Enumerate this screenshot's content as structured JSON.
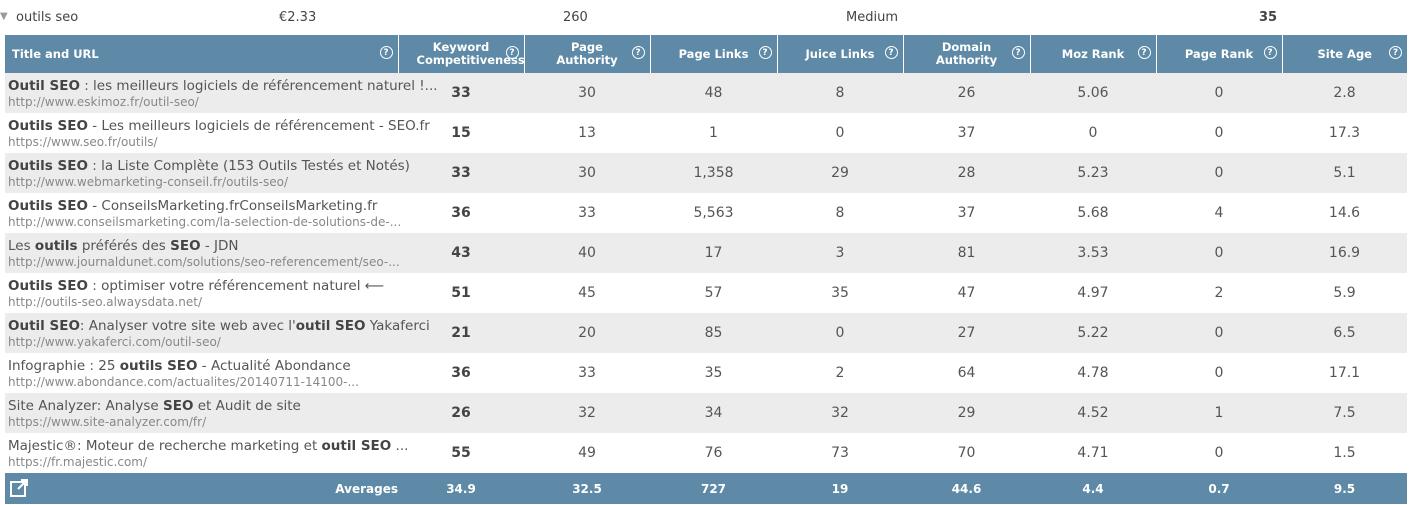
{
  "summary": {
    "keyword": "outils seo",
    "cpc": "€2.33",
    "volume": "260",
    "competition": "Medium",
    "score": "35"
  },
  "columns": [
    "Title and URL",
    "Keyword Competitiveness",
    "Page Authority",
    "Page Links",
    "Juice Links",
    "Domain Authority",
    "Moz Rank",
    "Page Rank",
    "Site Age"
  ],
  "rows": [
    {
      "title_html": "<b>Outil SEO</b> : les meilleurs logiciels de référencement naturel !...",
      "url": "http://www.eskimoz.fr/outil-seo/",
      "kc": "33",
      "pa": "30",
      "pl": "48",
      "jl": "8",
      "da": "26",
      "mr": "5.06",
      "pr": "0",
      "age": "2.8"
    },
    {
      "title_html": "<b>Outils SEO</b> - Les meilleurs logiciels de référencement - SEO.fr",
      "url": "https://www.seo.fr/outils/",
      "kc": "15",
      "pa": "13",
      "pl": "1",
      "jl": "0",
      "da": "37",
      "mr": "0",
      "pr": "0",
      "age": "17.3"
    },
    {
      "title_html": "<b>Outils SEO</b> : la Liste Complète (153 Outils Testés et Notés)",
      "url": "http://www.webmarketing-conseil.fr/outils-seo/",
      "kc": "33",
      "pa": "30",
      "pl": "1,358",
      "jl": "29",
      "da": "28",
      "mr": "5.23",
      "pr": "0",
      "age": "5.1"
    },
    {
      "title_html": "<b>Outils SEO</b> - ConseilsMarketing.frConseilsMarketing.fr",
      "url": "http://www.conseilsmarketing.com/la-selection-de-solutions-de-...",
      "kc": "36",
      "pa": "33",
      "pl": "5,563",
      "jl": "8",
      "da": "37",
      "mr": "5.68",
      "pr": "4",
      "age": "14.6"
    },
    {
      "title_html": "Les <b>outils</b> préférés des <b>SEO</b> - JDN",
      "url": "http://www.journaldunet.com/solutions/seo-referencement/seo-...",
      "kc": "43",
      "pa": "40",
      "pl": "17",
      "jl": "3",
      "da": "81",
      "mr": "3.53",
      "pr": "0",
      "age": "16.9"
    },
    {
      "title_html": "<b>Outils SEO</b> : optimiser votre référencement naturel ⟵",
      "url": "http://outils-seo.alwaysdata.net/",
      "kc": "51",
      "pa": "45",
      "pl": "57",
      "jl": "35",
      "da": "47",
      "mr": "4.97",
      "pr": "2",
      "age": "5.9"
    },
    {
      "title_html": "<b>Outil SEO</b>: Analyser votre site web avec l'<b>outil SEO</b> Yakaferci",
      "url": "http://www.yakaferci.com/outil-seo/",
      "kc": "21",
      "pa": "20",
      "pl": "85",
      "jl": "0",
      "da": "27",
      "mr": "5.22",
      "pr": "0",
      "age": "6.5"
    },
    {
      "title_html": "Infographie : 25 <b>outils SEO</b> - Actualité Abondance",
      "url": "http://www.abondance.com/actualites/20140711-14100-...",
      "kc": "36",
      "pa": "33",
      "pl": "35",
      "jl": "2",
      "da": "64",
      "mr": "4.78",
      "pr": "0",
      "age": "17.1"
    },
    {
      "title_html": "Site Analyzer: Analyse <b>SEO</b> et Audit de site",
      "url": "https://www.site-analyzer.com/fr/",
      "kc": "26",
      "pa": "32",
      "pl": "34",
      "jl": "32",
      "da": "29",
      "mr": "4.52",
      "pr": "1",
      "age": "7.5"
    },
    {
      "title_html": "Majestic®: Moteur de recherche marketing et <b>outil SEO</b> ...",
      "url": "https://fr.majestic.com/",
      "kc": "55",
      "pa": "49",
      "pl": "76",
      "jl": "73",
      "da": "70",
      "mr": "4.71",
      "pr": "0",
      "age": "1.5"
    }
  ],
  "averages": {
    "label": "Averages",
    "kc": "34.9",
    "pa": "32.5",
    "pl": "727",
    "jl": "19",
    "da": "44.6",
    "mr": "4.4",
    "pr": "0.7",
    "age": "9.5"
  },
  "icons": {
    "help": "help-circle-icon",
    "export": "external-link-icon",
    "caret": "caret-down-icon"
  },
  "colors": {
    "header_bg": "#5e8aa7",
    "row_alt": "#ececec"
  }
}
